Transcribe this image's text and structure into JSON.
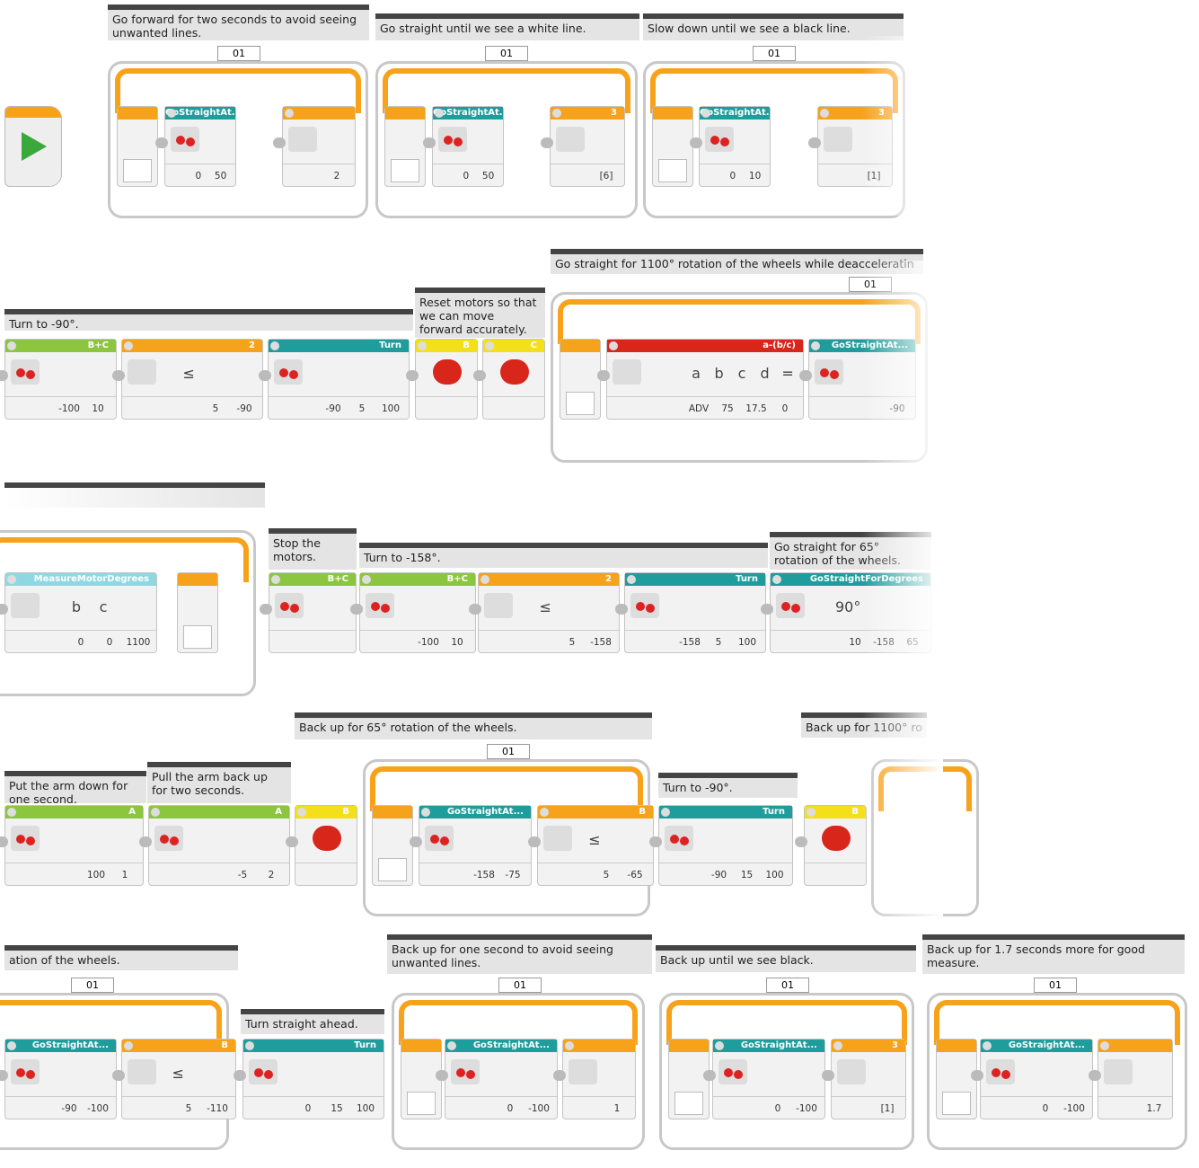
{
  "rows": [
    {
      "comments": [
        "Go forward for two seconds to avoid seeing unwanted lines.",
        "Go straight until we see a white line.",
        "Slow down until we see a black line."
      ],
      "loops": [
        "01",
        "01",
        "01"
      ],
      "blocks": [
        {
          "header": "GoStraightAt...",
          "params": [
            "0",
            "50"
          ]
        },
        {
          "params": [
            "2"
          ]
        },
        {
          "header": "GoStraightAt...",
          "params": [
            "0",
            "50"
          ]
        },
        {
          "header": "3",
          "params": [
            "[6]"
          ]
        },
        {
          "header": "GoStraightAt...",
          "params": [
            "0",
            "10"
          ]
        },
        {
          "header": "3",
          "params": [
            "[1]"
          ]
        }
      ]
    },
    {
      "comments": [
        "Turn to -90°.",
        "Reset motors so that we can move forward accurately.",
        "Go straight for 1100° rotation of the wheels while deacceleratin"
      ],
      "loops": [
        "01"
      ],
      "blocks": [
        {
          "header": "B+C",
          "params": [
            "-100",
            "10"
          ]
        },
        {
          "header": "2",
          "labels": [
            "≤"
          ],
          "params": [
            "5",
            "-90"
          ]
        },
        {
          "header": "Turn",
          "params": [
            "-90",
            "5",
            "100"
          ]
        },
        {
          "header": "B"
        },
        {
          "header": "C"
        },
        {
          "header": "a-(b/c)",
          "labels": [
            "a",
            "b",
            "c",
            "d",
            "="
          ],
          "params": [
            "ADV",
            "75",
            "17.5",
            "0"
          ]
        },
        {
          "header": "GoStraightAt...",
          "params": [
            "-90"
          ]
        }
      ]
    },
    {
      "comments": [
        "Stop the motors.",
        "Turn to -158°.",
        "Go straight for 65° rotation of the wheels."
      ],
      "blocks": [
        {
          "header": "MeasureMotorDegrees",
          "labels": [
            "b",
            "c"
          ],
          "params": [
            "0",
            "0",
            "1100"
          ]
        },
        {
          "header": "B+C"
        },
        {
          "header": "B+C",
          "params": [
            "-100",
            "10"
          ]
        },
        {
          "header": "2",
          "labels": [
            "≤"
          ],
          "params": [
            "5",
            "-158"
          ]
        },
        {
          "header": "Turn",
          "params": [
            "-158",
            "5",
            "100"
          ]
        },
        {
          "header": "GoStraightForDegrees",
          "labels": [
            "90°"
          ],
          "params": [
            "10",
            "-158",
            "65"
          ]
        }
      ]
    },
    {
      "comments": [
        "Put the arm down for one second.",
        "Pull the arm back up for two seconds.",
        "Back up for 65° rotation of the wheels.",
        "Turn to -90°.",
        "Back up for 1100° ro"
      ],
      "loops": [
        "01"
      ],
      "blocks": [
        {
          "header": "A",
          "params": [
            "100",
            "1"
          ]
        },
        {
          "header": "A",
          "params": [
            "-5",
            "2"
          ]
        },
        {
          "header": "B"
        },
        {
          "header": "GoStraightAt...",
          "params": [
            "-158",
            "-75"
          ]
        },
        {
          "header": "B",
          "labels": [
            "≤"
          ],
          "params": [
            "5",
            "-65"
          ]
        },
        {
          "header": "Turn",
          "params": [
            "-90",
            "15",
            "100"
          ]
        },
        {
          "header": "B"
        }
      ]
    },
    {
      "comments": [
        "ation of the wheels.",
        "Turn straight ahead.",
        "Back up for one second to avoid seeing unwanted lines.",
        "Back up until we see black.",
        "Back up for 1.7 seconds more for good measure."
      ],
      "loops": [
        "01",
        "01",
        "01",
        "01"
      ],
      "blocks": [
        {
          "header": "GoStraightAt...",
          "params": [
            "-90",
            "-100"
          ]
        },
        {
          "header": "B",
          "labels": [
            "≤"
          ],
          "params": [
            "5",
            "-110"
          ]
        },
        {
          "header": "Turn",
          "params": [
            "0",
            "15",
            "100"
          ]
        },
        {
          "header": "GoStraightAt...",
          "params": [
            "0",
            "-100"
          ]
        },
        {
          "params": [
            "1"
          ]
        },
        {
          "header": "GoStraightAt...",
          "params": [
            "0",
            "-100"
          ]
        },
        {
          "header": "3",
          "params": [
            "[1]"
          ]
        },
        {
          "header": "GoStraightAt...",
          "params": [
            "0",
            "-100"
          ]
        },
        {
          "params": [
            "1.7"
          ]
        }
      ]
    }
  ]
}
